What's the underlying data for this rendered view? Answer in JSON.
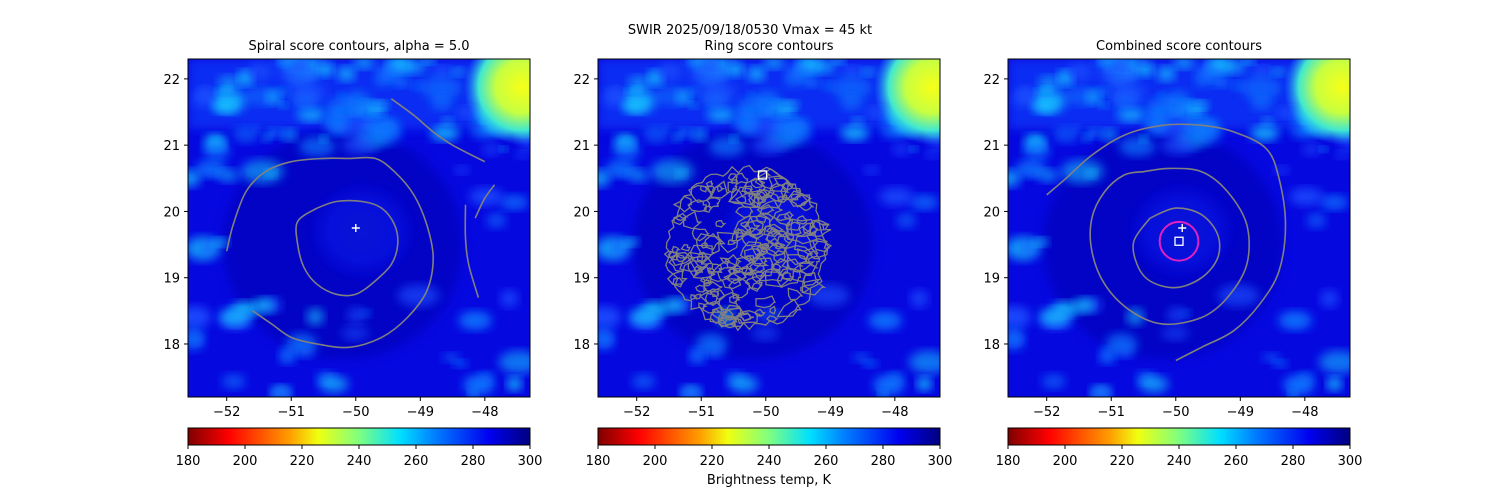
{
  "suptitle": "SWIR  2025/09/18/0530    Vmax = 45 kt",
  "panels": [
    {
      "title": "Spiral score contours, alpha =  5.0"
    },
    {
      "title": "Ring score contours"
    },
    {
      "title": "Combined score contours"
    }
  ],
  "colorbar": {
    "label": "Brightness temp, K",
    "ticks": [
      "180",
      "200",
      "220",
      "240",
      "260",
      "280",
      "300"
    ],
    "range": [
      180,
      300
    ],
    "colormap": "jet_r"
  },
  "colors": {
    "contour": "#808080",
    "marker": "#ffffff",
    "ring": "#e020c0",
    "background_cloud": "#0a10e8",
    "cold_top": "#1fd0ff",
    "warm_corner": "#d8ff30"
  },
  "chart_data": [
    {
      "type": "heatmap",
      "title": "Spiral score contours, alpha =  5.0",
      "xlim": [
        -52.6,
        -47.3
      ],
      "ylim": [
        17.2,
        22.3
      ],
      "xticks": [
        -52,
        -51,
        -50,
        -49,
        -48
      ],
      "yticks": [
        18,
        19,
        20,
        21,
        22
      ],
      "xtick_labels": [
        "−52",
        "−51",
        "−50",
        "−49",
        "−48"
      ],
      "ytick_labels": [
        "18",
        "19",
        "20",
        "21",
        "22"
      ],
      "markers": [
        {
          "symbol": "plus",
          "x": -50.0,
          "y": 19.75
        }
      ],
      "contours": [
        [
          [
            -52.0,
            19.4
          ],
          [
            -51.9,
            19.8
          ],
          [
            -51.7,
            20.3
          ],
          [
            -51.4,
            20.6
          ],
          [
            -51.0,
            20.75
          ],
          [
            -50.5,
            20.8
          ],
          [
            -50.1,
            20.8
          ],
          [
            -49.7,
            20.8
          ],
          [
            -49.4,
            20.6
          ],
          [
            -49.1,
            20.25
          ],
          [
            -48.9,
            19.8
          ],
          [
            -48.8,
            19.3
          ],
          [
            -48.9,
            18.8
          ],
          [
            -49.2,
            18.4
          ],
          [
            -49.6,
            18.1
          ],
          [
            -50.1,
            17.95
          ],
          [
            -50.6,
            18.0
          ],
          [
            -51.0,
            18.1
          ],
          [
            -51.3,
            18.3
          ],
          [
            -51.6,
            18.5
          ]
        ],
        [
          [
            -50.6,
            20.05
          ],
          [
            -50.3,
            20.15
          ],
          [
            -49.9,
            20.15
          ],
          [
            -49.6,
            20.05
          ],
          [
            -49.4,
            19.8
          ],
          [
            -49.35,
            19.5
          ],
          [
            -49.45,
            19.2
          ],
          [
            -49.7,
            18.95
          ],
          [
            -50.0,
            18.75
          ],
          [
            -50.3,
            18.75
          ],
          [
            -50.6,
            18.9
          ],
          [
            -50.8,
            19.15
          ],
          [
            -50.9,
            19.5
          ],
          [
            -50.9,
            19.85
          ],
          [
            -50.6,
            20.05
          ]
        ],
        [
          [
            -49.45,
            21.7
          ],
          [
            -49.1,
            21.45
          ],
          [
            -48.8,
            21.2
          ],
          [
            -48.5,
            21.0
          ],
          [
            -48.0,
            20.75
          ]
        ],
        [
          [
            -48.3,
            20.1
          ],
          [
            -48.3,
            19.6
          ],
          [
            -48.25,
            19.2
          ],
          [
            -48.1,
            18.7
          ]
        ],
        [
          [
            -48.15,
            19.9
          ],
          [
            -48.0,
            20.2
          ],
          [
            -47.85,
            20.4
          ]
        ]
      ]
    },
    {
      "type": "heatmap",
      "title": "Ring score contours",
      "xlim": [
        -52.6,
        -47.3
      ],
      "ylim": [
        17.2,
        22.3
      ],
      "xticks": [
        -52,
        -51,
        -50,
        -49,
        -48
      ],
      "yticks": [
        18,
        19,
        20,
        21,
        22
      ],
      "xtick_labels": [
        "−52",
        "−51",
        "−50",
        "−49",
        "−48"
      ],
      "ytick_labels": [
        "18",
        "19",
        "20",
        "21",
        "22"
      ],
      "markers": [
        {
          "symbol": "square",
          "x": -50.05,
          "y": 20.55
        }
      ],
      "contour_field": {
        "center": [
          -50.3,
          19.45
        ],
        "radius_deg": 1.25,
        "style": "noisy"
      }
    },
    {
      "type": "heatmap",
      "title": "Combined score contours",
      "xlim": [
        -52.6,
        -47.3
      ],
      "ylim": [
        17.2,
        22.3
      ],
      "xticks": [
        -52,
        -51,
        -50,
        -49,
        -48
      ],
      "yticks": [
        18,
        19,
        20,
        21,
        22
      ],
      "xtick_labels": [
        "−52",
        "−51",
        "−50",
        "−49",
        "−48"
      ],
      "ytick_labels": [
        "18",
        "19",
        "20",
        "21",
        "22"
      ],
      "markers": [
        {
          "symbol": "plus",
          "x": -49.9,
          "y": 19.75
        },
        {
          "symbol": "square",
          "x": -49.95,
          "y": 19.55
        },
        {
          "symbol": "ring",
          "x": -49.95,
          "y": 19.55,
          "r_deg": 0.3
        }
      ],
      "contours": [
        [
          [
            -52.0,
            20.25
          ],
          [
            -51.7,
            20.5
          ],
          [
            -51.3,
            20.85
          ],
          [
            -50.8,
            21.15
          ],
          [
            -50.2,
            21.3
          ],
          [
            -49.6,
            21.3
          ],
          [
            -49.1,
            21.2
          ],
          [
            -48.6,
            20.95
          ],
          [
            -48.4,
            20.5
          ],
          [
            -48.3,
            19.8
          ],
          [
            -48.4,
            19.1
          ],
          [
            -48.7,
            18.6
          ],
          [
            -49.1,
            18.2
          ],
          [
            -49.6,
            17.95
          ],
          [
            -50.0,
            17.75
          ]
        ],
        [
          [
            -50.5,
            20.6
          ],
          [
            -50.1,
            20.65
          ],
          [
            -49.6,
            20.6
          ],
          [
            -49.2,
            20.3
          ],
          [
            -48.9,
            19.8
          ],
          [
            -48.9,
            19.2
          ],
          [
            -49.2,
            18.7
          ],
          [
            -49.6,
            18.4
          ],
          [
            -50.2,
            18.3
          ],
          [
            -50.7,
            18.5
          ],
          [
            -51.1,
            18.9
          ],
          [
            -51.3,
            19.4
          ],
          [
            -51.3,
            19.9
          ],
          [
            -51.1,
            20.3
          ],
          [
            -50.8,
            20.55
          ],
          [
            -50.5,
            20.6
          ]
        ],
        [
          [
            -50.4,
            19.9
          ],
          [
            -50.0,
            20.05
          ],
          [
            -49.6,
            19.95
          ],
          [
            -49.35,
            19.65
          ],
          [
            -49.35,
            19.3
          ],
          [
            -49.6,
            19.0
          ],
          [
            -50.0,
            18.85
          ],
          [
            -50.4,
            18.95
          ],
          [
            -50.6,
            19.2
          ],
          [
            -50.65,
            19.55
          ],
          [
            -50.4,
            19.9
          ]
        ]
      ]
    }
  ]
}
